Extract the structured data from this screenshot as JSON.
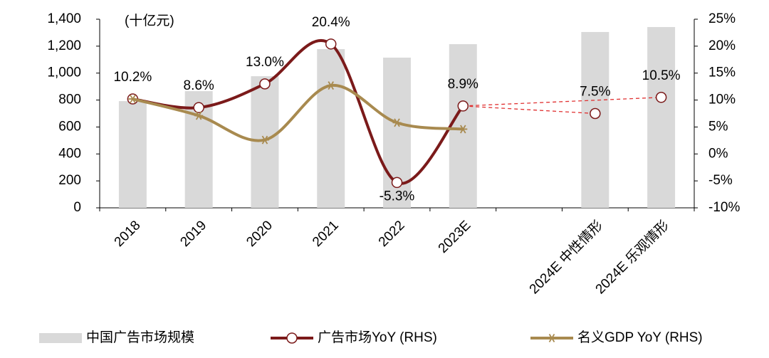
{
  "chart_data": {
    "type": "bar_line",
    "annotation": "(十亿元)",
    "categories": [
      "2018",
      "2019",
      "2020",
      "2021",
      "2022",
      "2023E",
      null,
      "2024E 中性情形",
      "2024E 乐观情形"
    ],
    "series": [
      {
        "name": "中国广告市场规模",
        "type": "bar",
        "color": "#d9d9d9",
        "values": [
          792,
          866,
          977,
          1178,
          1115,
          1215,
          null,
          1305,
          1342
        ]
      },
      {
        "name": "广告市场YoY (RHS)",
        "type": "line",
        "axis": "y2",
        "color": "#7b1a1a",
        "projection_color": "#e03030",
        "values": [
          10.2,
          8.6,
          13.0,
          20.4,
          -5.3,
          8.9,
          null,
          7.5,
          10.5
        ],
        "value_labels": [
          "10.2%",
          "8.6%",
          "13.0%",
          "20.4%",
          "-5.3%",
          "8.9%",
          null,
          "7.5%",
          "10.5%"
        ]
      },
      {
        "name": "名义GDP YoY (RHS)",
        "type": "line",
        "axis": "y2",
        "color": "#a88a4f",
        "values": [
          10.2,
          7.1,
          2.6,
          12.7,
          5.8,
          4.6,
          null,
          null,
          null
        ]
      }
    ],
    "ylim": [
      0,
      1400
    ],
    "yticks": [
      0,
      200,
      400,
      600,
      800,
      {
        "value": 1000,
        "label": "1,000"
      },
      {
        "value": 1200,
        "label": "1,200"
      },
      {
        "value": 1400,
        "label": "1,400"
      }
    ],
    "y2lim": [
      -10,
      25
    ],
    "y2ticks": [
      {
        "value": -10,
        "label": "-10%"
      },
      {
        "value": -5,
        "label": "-5%"
      },
      {
        "value": 0,
        "label": "0%"
      },
      {
        "value": 5,
        "label": "5%"
      },
      {
        "value": 10,
        "label": "10%"
      },
      {
        "value": 15,
        "label": "15%"
      },
      {
        "value": 20,
        "label": "20%"
      },
      {
        "value": 25,
        "label": "25%"
      }
    ],
    "legend": "bottom"
  }
}
